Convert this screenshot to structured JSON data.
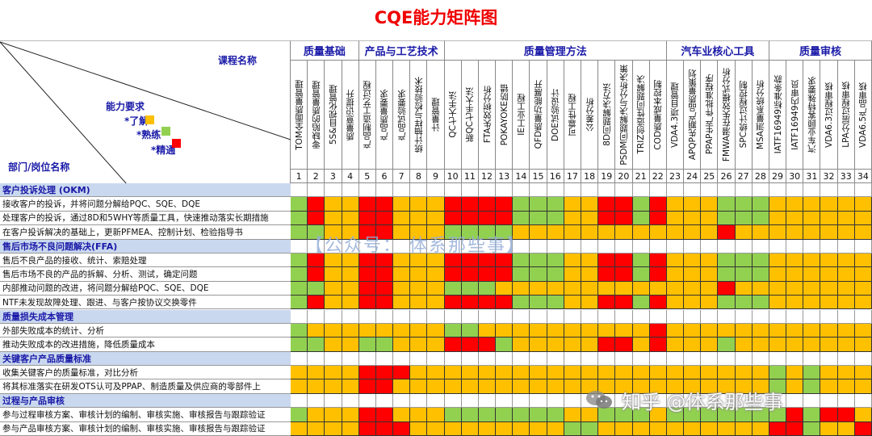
{
  "title": "CQE能力矩阵图",
  "corner": {
    "course_label": "课程名称",
    "ability_label": "能力要求",
    "dept_label": "部门/岗位名称",
    "legend": [
      {
        "label": "*了解",
        "level": "Y",
        "color": "#FFC000"
      },
      {
        "label": "*熟练",
        "level": "G",
        "color": "#92D050"
      },
      {
        "label": "*精通",
        "level": "R",
        "color": "#FF0000"
      }
    ]
  },
  "level_colors": {
    "Y": "#FFC000",
    "G": "#92D050",
    "R": "#FF0000"
  },
  "groups": [
    {
      "name": "质量基础",
      "span": 4
    },
    {
      "name": "产品与工艺技术",
      "span": 5
    },
    {
      "name": "质量管理方法",
      "span": 13
    },
    {
      "name": "汽车业核心工具",
      "span": 6
    },
    {
      "name": "质量审核",
      "span": 6
    }
  ],
  "courses": [
    {
      "no": "1",
      "name": "TOM全面质量管理"
    },
    {
      "no": "2",
      "name": "零缺陷的质量管理"
    },
    {
      "no": "3",
      "name": "5S&目视化管理"
    },
    {
      "no": "4",
      "name": "质量意识提升"
    },
    {
      "no": "5",
      "name": "产品制造工艺过程"
    },
    {
      "no": "6",
      "name": "产品质量要求"
    },
    {
      "no": "7",
      "name": "产品试验要求"
    },
    {
      "no": "8",
      "name": "统计抽样与检验技术"
    },
    {
      "no": "9",
      "name": "计量管理"
    },
    {
      "no": "10",
      "name": "QC七大手法"
    },
    {
      "no": "11",
      "name": "新QC七手大法"
    },
    {
      "no": "12",
      "name": "FTA失效树分析"
    },
    {
      "no": "13",
      "name": "POKAYOKE防错"
    },
    {
      "no": "14",
      "name": "IE工业工程"
    },
    {
      "no": "15",
      "name": "QFD质量功能展开"
    },
    {
      "no": "16",
      "name": "DOE试验设计"
    },
    {
      "no": "17",
      "name": "可靠性工程"
    },
    {
      "no": "18",
      "name": "公差分析"
    },
    {
      "no": "19",
      "name": "8D问题解决方法"
    },
    {
      "no": "20",
      "name": "PSDM问题解决与分析决策"
    },
    {
      "no": "21",
      "name": "TRIZ创造性问题解决"
    },
    {
      "no": "22",
      "name": "COD质量成本控制"
    },
    {
      "no": "23",
      "name": "VDA4.3项目管理"
    },
    {
      "no": "24",
      "name": "APQP先期产品质量策划"
    },
    {
      "no": "25",
      "name": "PPAP生产件批准程序"
    },
    {
      "no": "26",
      "name": "FMWA潜在失效模式分析"
    },
    {
      "no": "27",
      "name": "SPC统计过程控制"
    },
    {
      "no": "28",
      "name": "MSA测量系统分析"
    },
    {
      "no": "29",
      "name": "IATF16949标准条款"
    },
    {
      "no": "30",
      "name": "IATF16949内审员"
    },
    {
      "no": "31",
      "name": "汽车业顾客特殊要求"
    },
    {
      "no": "32",
      "name": "VDA6.3过程审核"
    },
    {
      "no": "33",
      "name": "LPA分层过程审核"
    },
    {
      "no": "34",
      "name": "VDA6.5产品审核"
    }
  ],
  "sections": [
    {
      "title": "客户投诉处理 (OKM)",
      "rows": [
        {
          "task": "接收客户的投诉，并将问题分解给PQC、SQE、DQE",
          "levels": "GRYYRRYYYRRRRGGGYYRRGRYYYGGGYYYYYY"
        },
        {
          "task": "处理客户的投诉，通过8D和5WHY等质量工具，快速推动落实长期措施",
          "levels": "GRYYRRYYYRRRRGGGYYRRGRYYYGGGYYYYYY"
        },
        {
          "task": "在客户投诉解决的基础上，更新PFMEA、控制计划、检验指导书",
          "levels": "GGYYRRYYYGGGGYYYYYYYYYYYYRYYYYYYYY"
        }
      ]
    },
    {
      "title": "售后市场不良问题解决(FFA)",
      "rows": [
        {
          "task": "售后不良产品的接收、统计、索赔处理",
          "levels": "GRYYRRYYYRRRRGGGYYRRGRYYYGGGYYYYYY"
        },
        {
          "task": "售后市场不良的产品的拆解、分析、测试，确定问题",
          "levels": "GRYYRRYYYRRRRGGGYYRRGRYYYGGGYYYYYY"
        },
        {
          "task": "内部推动问题的改进，将问题分解给PQC、SQE、DQE",
          "levels": "GGYYRRYYYGGGYYYYYYYYYYYYYRYYYYYYYY"
        },
        {
          "task": "NTF未发现故障处理、跟进、与客户按协议交换零件",
          "levels": "GRYYRRYYYRRRRGGGYYRRGRYYYGGGYYYYYY"
        }
      ]
    },
    {
      "title": "质量损失成本管理",
      "rows": [
        {
          "task": "外部失败成本的统计、分析",
          "levels": "GYYYYYYYYGGYYYYYYYYYYRYYYYYYYYYYYY"
        },
        {
          "task": "推动失败成本的改进措施，降低质量成本",
          "levels": "GGYYGGYYYRRRGYYYYYRRYRYYYGYYYYYYYY"
        }
      ]
    },
    {
      "title": "关键客户产品质量标准",
      "rows": [
        {
          "task": "收集关键客户的质量标准，对比分析",
          "levels": "YYYYRRRYYYYYYYYYYYYYYYYYYYYYGYGYYY"
        },
        {
          "task": "将其标准落实在研发OTS认可及PPAP、制造质量及供应商的零部件上",
          "levels": "YYYYRRYYYYYYYYYYYYYYYYYYYYYYGYGYYY"
        }
      ]
    },
    {
      "title": "过程与产品审核",
      "rows": [
        {
          "task": "参与过程审核方案、审核计划的编制、审核实施、审核报告与跟踪验证",
          "levels": "GYYYRRYYYGGGGGGGYYGGGYGGGGGGGRGRRY"
        },
        {
          "task": "参与产品审核方案、审核计划的编制、审核实施、审核报告与跟踪验证",
          "levels": "YYYYRRRYYYYYYYYYGGYYYYYYYYYYRRGYYR"
        }
      ]
    }
  ],
  "watermarks": {
    "center": "【公众号： 体系那些事】",
    "bottom": "知乎 @体系那些事"
  }
}
